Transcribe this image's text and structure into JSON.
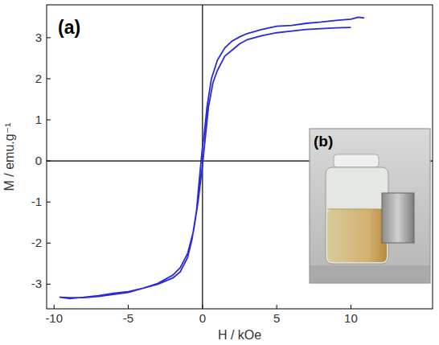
{
  "chart_data": {
    "type": "line",
    "x_label": "H / kOe",
    "y_label": "M / emu.g⁻¹",
    "annotations": [
      "(a)",
      "(b)"
    ],
    "xlim": [
      -10.5,
      15.5
    ],
    "xticks": [
      -10,
      -5,
      0,
      5,
      10
    ],
    "ylim": [
      -3.6,
      3.8
    ],
    "yticks": [
      -3,
      -2,
      -1,
      0,
      1,
      2,
      3
    ],
    "grid": false,
    "x": [
      10.9,
      10.5,
      10,
      9,
      8,
      7,
      6,
      5,
      4,
      3,
      2.5,
      2,
      1.5,
      1,
      0.6,
      0.3,
      0.1,
      0,
      -0.2,
      -0.4,
      -0.7,
      -1,
      -1.5,
      -2,
      -3,
      -4,
      -5,
      -6,
      -7,
      -8,
      -9,
      -9.6,
      -9,
      -8,
      -7,
      -6,
      -5,
      -4,
      -3,
      -2,
      -1.5,
      -1,
      -0.6,
      -0.3,
      -0.1,
      0,
      0.2,
      0.4,
      0.7,
      1,
      1.5,
      2,
      2.5,
      3,
      4,
      5,
      6,
      7,
      8,
      9,
      10
    ],
    "series": [
      {
        "color": "#2a2ad8",
        "line_style": "solid",
        "values": [
          3.48,
          3.5,
          3.45,
          3.42,
          3.38,
          3.35,
          3.3,
          3.28,
          3.2,
          3.1,
          3.02,
          2.92,
          2.75,
          2.45,
          2.0,
          1.3,
          0.6,
          0.35,
          -0.4,
          -1.2,
          -1.9,
          -2.35,
          -2.7,
          -2.85,
          -3.0,
          -3.1,
          -3.2,
          -3.25,
          -3.3,
          -3.33,
          -3.33,
          -3.32,
          -3.35,
          -3.32,
          -3.28,
          -3.22,
          -3.18,
          -3.1,
          -2.98,
          -2.78,
          -2.6,
          -2.25,
          -1.7,
          -1.0,
          -0.4,
          -0.1,
          0.6,
          1.3,
          1.9,
          2.2,
          2.55,
          2.7,
          2.85,
          2.95,
          3.05,
          3.12,
          3.16,
          3.2,
          3.22,
          3.24,
          3.25
        ]
      }
    ]
  }
}
